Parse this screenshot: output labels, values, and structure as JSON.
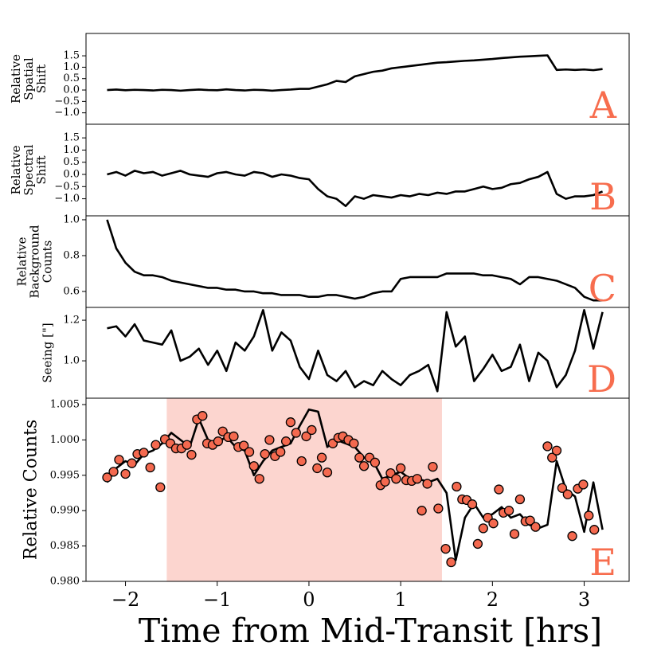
{
  "chart_data": [
    {
      "type": "line",
      "ylabel": [
        "Relative",
        "Spatial",
        "Shift"
      ],
      "annotation": "A",
      "annotation_color": "#f76d4e",
      "color": "#000000",
      "xlim": [
        -2.43,
        3.49
      ],
      "ylim": [
        -1.5,
        2.48
      ],
      "yticks": [
        1.5,
        {
          "value": 1.0,
          "label": "1.0"
        },
        0.5,
        {
          "value": 0.0,
          "label": "0.0"
        },
        {
          "value": -0.5,
          "label": "−0.5"
        },
        {
          "value": -1.0,
          "label": "−1.0"
        }
      ],
      "x": [
        -2.2,
        -2.1,
        -2.0,
        -1.9,
        -1.8,
        -1.7,
        -1.6,
        -1.5,
        -1.4,
        -1.3,
        -1.2,
        -1.1,
        -1.0,
        -0.9,
        -0.8,
        -0.7,
        -0.6,
        -0.5,
        -0.4,
        -0.3,
        -0.2,
        -0.1,
        0.0,
        0.1,
        0.2,
        0.3,
        0.4,
        0.5,
        0.6,
        0.7,
        0.8,
        0.9,
        1.0,
        1.1,
        1.2,
        1.3,
        1.4,
        1.5,
        1.6,
        1.7,
        1.8,
        1.9,
        2.0,
        2.1,
        2.2,
        2.3,
        2.4,
        2.5,
        2.6,
        2.7,
        2.8,
        2.9,
        3.0,
        3.1,
        3.2
      ],
      "values": [
        0.0,
        0.02,
        -0.01,
        0.01,
        0.0,
        -0.02,
        0.01,
        0.0,
        -0.03,
        0.0,
        0.02,
        0.0,
        -0.01,
        0.03,
        0.0,
        -0.02,
        0.01,
        0.0,
        -0.03,
        0.0,
        0.02,
        0.05,
        0.05,
        0.15,
        0.25,
        0.4,
        0.35,
        0.6,
        0.7,
        0.8,
        0.85,
        0.95,
        1.0,
        1.05,
        1.1,
        1.15,
        1.2,
        1.22,
        1.25,
        1.28,
        1.3,
        1.33,
        1.36,
        1.4,
        1.43,
        1.46,
        1.48,
        1.5,
        1.52,
        0.88,
        0.9,
        0.88,
        0.9,
        0.87,
        0.92
      ]
    },
    {
      "type": "line",
      "ylabel": [
        "Relative",
        "Spectral",
        "Shift"
      ],
      "annotation": "B",
      "annotation_color": "#f76d4e",
      "color": "#000000",
      "xlim": [
        -2.43,
        3.49
      ],
      "ylim": [
        -1.7,
        2.06
      ],
      "yticks": [
        1.5,
        {
          "value": 1.0,
          "label": "1.0"
        },
        0.5,
        {
          "value": 0.0,
          "label": "0.0"
        },
        {
          "value": -0.5,
          "label": "−0.5"
        },
        {
          "value": -1.0,
          "label": "−1.0"
        }
      ],
      "x": [
        -2.2,
        -2.1,
        -2.0,
        -1.9,
        -1.8,
        -1.7,
        -1.6,
        -1.5,
        -1.4,
        -1.3,
        -1.2,
        -1.1,
        -1.0,
        -0.9,
        -0.8,
        -0.7,
        -0.6,
        -0.5,
        -0.4,
        -0.3,
        -0.2,
        -0.1,
        0.0,
        0.1,
        0.2,
        0.3,
        0.4,
        0.5,
        0.6,
        0.7,
        0.8,
        0.9,
        1.0,
        1.1,
        1.2,
        1.3,
        1.4,
        1.5,
        1.6,
        1.7,
        1.8,
        1.9,
        2.0,
        2.1,
        2.2,
        2.3,
        2.4,
        2.5,
        2.6,
        2.7,
        2.8,
        2.9,
        3.0,
        3.1,
        3.2
      ],
      "values": [
        0.0,
        0.1,
        -0.05,
        0.15,
        0.05,
        0.1,
        -0.05,
        0.05,
        0.15,
        0.0,
        -0.05,
        -0.1,
        0.05,
        0.1,
        0.0,
        -0.05,
        0.1,
        0.05,
        -0.1,
        0.0,
        -0.05,
        -0.15,
        -0.2,
        -0.6,
        -0.9,
        -1.0,
        -1.3,
        -0.9,
        -1.0,
        -0.85,
        -0.9,
        -0.95,
        -0.85,
        -0.9,
        -0.8,
        -0.85,
        -0.75,
        -0.8,
        -0.7,
        -0.7,
        -0.6,
        -0.5,
        -0.6,
        -0.55,
        -0.4,
        -0.35,
        -0.2,
        -0.1,
        0.1,
        -0.8,
        -1.0,
        -0.9,
        -0.9,
        -0.85,
        -0.7
      ]
    },
    {
      "type": "line",
      "ylabel": [
        "Relative",
        "Background",
        "Counts"
      ],
      "annotation": "C",
      "annotation_color": "#f76d4e",
      "color": "#000000",
      "xlim": [
        -2.43,
        3.49
      ],
      "ylim": [
        0.511,
        1.022
      ],
      "yticks": [
        {
          "value": 1.0,
          "label": "1.0"
        },
        0.8,
        0.6
      ],
      "x": [
        -2.2,
        -2.1,
        -2.0,
        -1.9,
        -1.8,
        -1.7,
        -1.6,
        -1.5,
        -1.4,
        -1.3,
        -1.2,
        -1.1,
        -1.0,
        -0.9,
        -0.8,
        -0.7,
        -0.6,
        -0.5,
        -0.4,
        -0.3,
        -0.2,
        -0.1,
        0.0,
        0.1,
        0.2,
        0.3,
        0.4,
        0.5,
        0.6,
        0.7,
        0.8,
        0.9,
        1.0,
        1.1,
        1.2,
        1.3,
        1.4,
        1.5,
        1.6,
        1.7,
        1.8,
        1.9,
        2.0,
        2.1,
        2.2,
        2.3,
        2.4,
        2.5,
        2.6,
        2.7,
        2.8,
        2.9,
        3.0,
        3.1,
        3.2
      ],
      "values": [
        1.0,
        0.84,
        0.76,
        0.71,
        0.69,
        0.69,
        0.68,
        0.66,
        0.65,
        0.64,
        0.63,
        0.62,
        0.62,
        0.61,
        0.61,
        0.6,
        0.6,
        0.59,
        0.59,
        0.58,
        0.58,
        0.58,
        0.57,
        0.57,
        0.58,
        0.58,
        0.57,
        0.56,
        0.57,
        0.59,
        0.6,
        0.6,
        0.67,
        0.68,
        0.68,
        0.68,
        0.68,
        0.7,
        0.7,
        0.7,
        0.7,
        0.69,
        0.69,
        0.68,
        0.67,
        0.64,
        0.68,
        0.68,
        0.67,
        0.66,
        0.64,
        0.62,
        0.57,
        0.55,
        0.55
      ]
    },
    {
      "type": "line",
      "ylabel": [
        "Seeing [\"]"
      ],
      "annotation": "D",
      "annotation_color": "#f76d4e",
      "color": "#000000",
      "xlim": [
        -2.43,
        3.49
      ],
      "ylim": [
        0.816,
        1.263
      ],
      "yticks": [
        1.2,
        {
          "value": 1.0,
          "label": "1.0"
        }
      ],
      "x": [
        -2.2,
        -2.1,
        -2.0,
        -1.9,
        -1.8,
        -1.7,
        -1.6,
        -1.5,
        -1.4,
        -1.3,
        -1.2,
        -1.1,
        -1.0,
        -0.9,
        -0.8,
        -0.7,
        -0.6,
        -0.5,
        -0.4,
        -0.3,
        -0.2,
        -0.1,
        0.0,
        0.1,
        0.2,
        0.3,
        0.4,
        0.5,
        0.6,
        0.7,
        0.8,
        0.9,
        1.0,
        1.1,
        1.2,
        1.3,
        1.4,
        1.5,
        1.6,
        1.7,
        1.8,
        1.9,
        2.0,
        2.1,
        2.2,
        2.3,
        2.4,
        2.5,
        2.6,
        2.7,
        2.8,
        2.9,
        3.0,
        3.1,
        3.2
      ],
      "values": [
        1.16,
        1.17,
        1.12,
        1.18,
        1.1,
        1.09,
        1.08,
        1.15,
        1.0,
        1.02,
        1.06,
        0.98,
        1.05,
        0.95,
        1.09,
        1.05,
        1.12,
        1.25,
        1.05,
        1.14,
        1.1,
        0.97,
        0.91,
        1.05,
        0.93,
        0.9,
        0.95,
        0.87,
        0.9,
        0.88,
        0.95,
        0.91,
        0.88,
        0.93,
        0.95,
        0.98,
        0.85,
        1.24,
        1.07,
        1.12,
        0.9,
        0.96,
        1.03,
        0.95,
        0.97,
        1.08,
        0.9,
        1.04,
        1.0,
        0.87,
        0.93,
        1.05,
        1.25,
        1.06,
        1.24
      ]
    },
    {
      "type": "line",
      "ylabel": [
        "Relative Counts"
      ],
      "annotation": "E",
      "annotation_color": "#f76d4e",
      "color": "#000000",
      "xlabel": "Time from Mid-Transit [hrs]",
      "xlim": [
        -2.43,
        3.49
      ],
      "ylim": [
        0.98,
        1.0059
      ],
      "xticks": [
        {
          "value": -2,
          "label": "−2"
        },
        {
          "value": -1,
          "label": "−1"
        },
        0,
        1,
        2,
        3
      ],
      "yticks": [
        1.005,
        {
          "value": 1.0,
          "label": "1.000"
        },
        0.995,
        {
          "value": 0.99,
          "label": "0.990"
        },
        0.985,
        {
          "value": 0.98,
          "label": "0.980"
        }
      ],
      "span": [
        -1.55,
        1.45
      ],
      "span_color": "#fcd5cf",
      "x": [
        -2.2,
        -2.1,
        -2.0,
        -1.9,
        -1.8,
        -1.7,
        -1.6,
        -1.5,
        -1.4,
        -1.3,
        -1.2,
        -1.1,
        -1.0,
        -0.9,
        -0.8,
        -0.7,
        -0.6,
        -0.5,
        -0.4,
        -0.3,
        -0.2,
        -0.1,
        0.0,
        0.1,
        0.2,
        0.3,
        0.4,
        0.5,
        0.6,
        0.7,
        0.8,
        0.9,
        1.0,
        1.1,
        1.2,
        1.3,
        1.4,
        1.5,
        1.6,
        1.7,
        1.8,
        1.9,
        2.0,
        2.1,
        2.2,
        2.3,
        2.4,
        2.5,
        2.6,
        2.7,
        2.8,
        2.9,
        3.0,
        3.1,
        3.2
      ],
      "values": [
        0.994,
        0.996,
        0.997,
        0.9965,
        0.998,
        0.9985,
        0.9995,
        1.001,
        1.0,
        0.999,
        1.003,
        1.0,
        0.9995,
        1.0005,
        0.999,
        0.9985,
        0.995,
        0.997,
        0.9985,
        0.999,
        0.9995,
        1.002,
        1.0043,
        1.004,
        0.999,
        1.0,
        0.9995,
        0.999,
        0.9975,
        0.997,
        0.9945,
        0.995,
        0.9955,
        0.9945,
        0.9945,
        0.994,
        0.9945,
        0.9925,
        0.983,
        0.989,
        0.991,
        0.989,
        0.9895,
        0.9905,
        0.989,
        0.9895,
        0.988,
        0.9875,
        0.988,
        0.997,
        0.993,
        0.992,
        0.987,
        0.994,
        0.9873
      ],
      "points": {
        "color": "#f4694f",
        "x": [
          -2.2,
          -2.13,
          -2.07,
          -2.0,
          -1.93,
          -1.87,
          -1.8,
          -1.73,
          -1.67,
          -1.62,
          -1.57,
          -1.51,
          -1.45,
          -1.39,
          -1.33,
          -1.28,
          -1.22,
          -1.16,
          -1.11,
          -1.05,
          -0.99,
          -0.94,
          -0.88,
          -0.82,
          -0.77,
          -0.71,
          -0.65,
          -0.6,
          -0.54,
          -0.48,
          -0.43,
          -0.37,
          -0.31,
          -0.25,
          -0.2,
          -0.14,
          -0.08,
          -0.03,
          0.03,
          0.09,
          0.14,
          0.2,
          0.26,
          0.32,
          0.37,
          0.43,
          0.49,
          0.55,
          0.6,
          0.66,
          0.72,
          0.78,
          0.83,
          0.89,
          0.95,
          1.0,
          1.06,
          1.12,
          1.18,
          1.23,
          1.29,
          1.35,
          1.41,
          1.49,
          1.55,
          1.61,
          1.67,
          1.72,
          1.78,
          1.84,
          1.9,
          1.95,
          2.01,
          2.07,
          2.12,
          2.18,
          2.24,
          2.3,
          2.36,
          2.41,
          2.47,
          2.6,
          2.65,
          2.7,
          2.76,
          2.82,
          2.87,
          2.93,
          2.99,
          3.05,
          3.11
        ],
        "values": [
          0.9947,
          0.9955,
          0.9972,
          0.9952,
          0.9967,
          0.998,
          0.9982,
          0.9961,
          0.9993,
          0.9933,
          1.0001,
          0.9995,
          0.9988,
          0.9988,
          0.9993,
          0.9979,
          1.0029,
          1.0034,
          0.9995,
          0.9993,
          0.9998,
          1.0012,
          1.0004,
          1.0005,
          0.999,
          0.9992,
          0.9983,
          0.9963,
          0.9945,
          0.998,
          1.0,
          0.9977,
          0.9983,
          0.9998,
          1.0025,
          1.001,
          0.997,
          1.0005,
          1.0014,
          0.996,
          0.9975,
          0.9954,
          0.9995,
          1.0003,
          1.0005,
          1.0,
          0.9995,
          0.9975,
          0.9963,
          0.9975,
          0.9968,
          0.9936,
          0.9941,
          0.9953,
          0.9945,
          0.996,
          0.9943,
          0.9942,
          0.9945,
          0.99,
          0.9938,
          0.9962,
          0.9903,
          0.9846,
          0.9827,
          0.9934,
          0.9916,
          0.9915,
          0.9909,
          0.9853,
          0.9875,
          0.989,
          0.9882,
          0.993,
          0.9897,
          0.99,
          0.9867,
          0.9916,
          0.9885,
          0.9886,
          0.9877,
          0.9991,
          0.9975,
          0.9985,
          0.9932,
          0.9923,
          0.9864,
          0.9931,
          0.9937,
          0.9893,
          0.9873
        ]
      }
    }
  ]
}
